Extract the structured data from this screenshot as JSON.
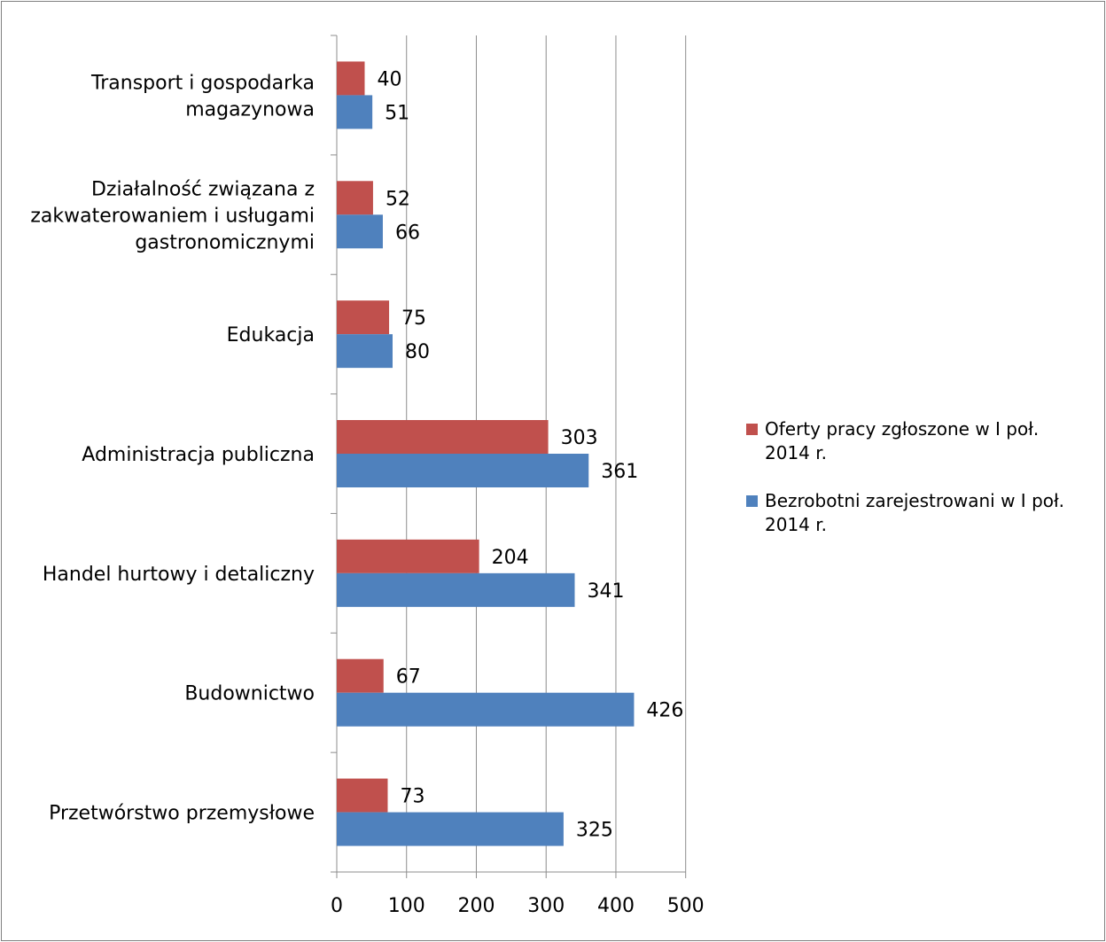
{
  "chart_data": {
    "type": "bar",
    "orientation": "horizontal",
    "categories": [
      "Przetwórstwo przemysłowe",
      "Budownictwo",
      "Handel hurtowy i detaliczny",
      "Administracja publiczna",
      "Edukacja",
      "Działalność związana z zakwaterowaniem i usługami gastronomicznymi",
      "Transport i gospodarka magazynowa"
    ],
    "category_lines": [
      [
        "Przetwórstwo przemysłowe"
      ],
      [
        "Budownictwo"
      ],
      [
        "Handel hurtowy i detaliczny"
      ],
      [
        "Administracja publiczna"
      ],
      [
        "Edukacja"
      ],
      [
        "Działalność związana z",
        "zakwaterowaniem i usługami",
        "gastronomicznymi"
      ],
      [
        "Transport i gospodarka",
        "magazynowa"
      ]
    ],
    "series": [
      {
        "name": "Oferty pracy zgłoszone w I poł. 2014 r.",
        "name_lines": [
          "Oferty pracy zgłoszone w I poł.",
          "2014 r."
        ],
        "color": "#c0504d",
        "values": [
          73,
          67,
          204,
          303,
          75,
          52,
          40
        ]
      },
      {
        "name": "Bezrobotni zarejestrowani w I poł. 2014 r.",
        "name_lines": [
          "Bezrobotni zarejestrowani w I poł.",
          "2014 r."
        ],
        "color": "#4f81bd",
        "values": [
          325,
          426,
          341,
          361,
          80,
          66,
          51
        ]
      }
    ],
    "xlim": [
      0,
      500
    ],
    "xticks": [
      0,
      100,
      200,
      300,
      400,
      500
    ],
    "xlabel": "",
    "ylabel": "",
    "grid": true,
    "legend_position": "right",
    "data_labels": true
  }
}
